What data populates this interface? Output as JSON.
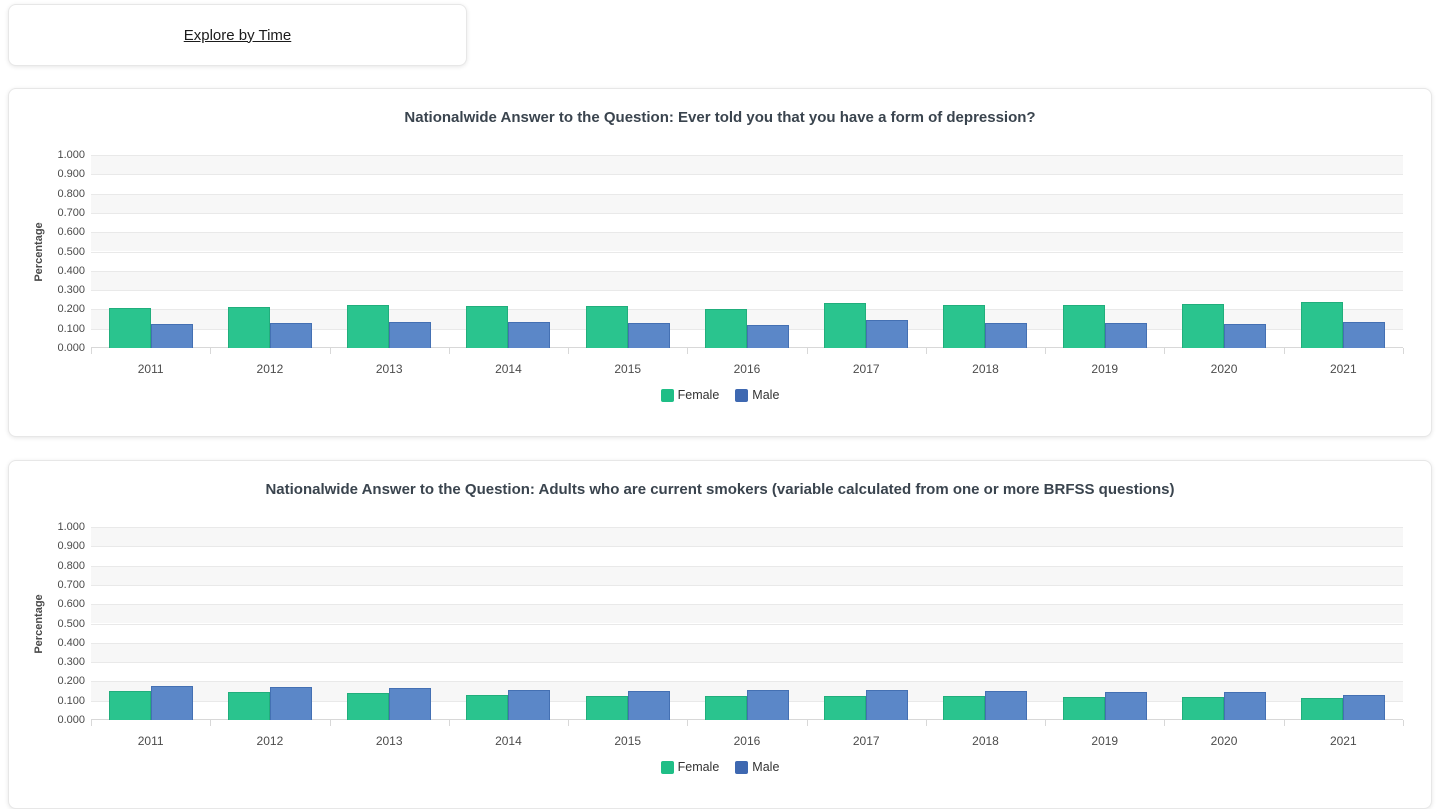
{
  "explore_card": {
    "link_label": "Explore by Time"
  },
  "colors": {
    "female_fill": "#2AC48E",
    "female_border": "#21AE7C",
    "female_legend": "#1FBE86",
    "male_fill": "#5B87C8",
    "male_border": "#4470B3",
    "male_legend": "#3E68B1",
    "band_gray": "#f7f7f7",
    "gridline": "#e9e9e9"
  },
  "chart_data": [
    {
      "type": "bar",
      "title": "Nationalwide Answer to the Question: Ever told you that you have a form of depression?",
      "xlabel": "",
      "ylabel": "Percentage",
      "ylim": [
        0,
        1
      ],
      "y_tick_labels": [
        "1.000",
        "0.900",
        "0.800",
        "0.700",
        "0.600",
        "0.500",
        "0.400",
        "0.300",
        "0.200",
        "0.100",
        "0.000"
      ],
      "grid": true,
      "legend_position": "bottom",
      "categories": [
        "2011",
        "2012",
        "2013",
        "2014",
        "2015",
        "2016",
        "2017",
        "2018",
        "2019",
        "2020",
        "2021"
      ],
      "series": [
        {
          "name": "Female",
          "color_key": "female",
          "values": [
            0.205,
            0.21,
            0.223,
            0.218,
            0.216,
            0.202,
            0.232,
            0.221,
            0.222,
            0.228,
            0.241
          ]
        },
        {
          "name": "Male",
          "color_key": "male",
          "values": [
            0.125,
            0.128,
            0.135,
            0.133,
            0.131,
            0.119,
            0.143,
            0.13,
            0.131,
            0.124,
            0.134
          ]
        }
      ]
    },
    {
      "type": "bar",
      "title": "Nationalwide Answer to the Question: Adults who are current smokers (variable calculated from one or more BRFSS questions)",
      "xlabel": "",
      "ylabel": "Percentage",
      "ylim": [
        0,
        1
      ],
      "y_tick_labels": [
        "1.000",
        "0.900",
        "0.800",
        "0.700",
        "0.600",
        "0.500",
        "0.400",
        "0.300",
        "0.200",
        "0.100",
        "0.000"
      ],
      "grid": true,
      "legend_position": "bottom",
      "categories": [
        "2011",
        "2012",
        "2013",
        "2014",
        "2015",
        "2016",
        "2017",
        "2018",
        "2019",
        "2020",
        "2021"
      ],
      "series": [
        {
          "name": "Female",
          "color_key": "female",
          "values": [
            0.148,
            0.144,
            0.142,
            0.128,
            0.123,
            0.127,
            0.127,
            0.125,
            0.12,
            0.118,
            0.115
          ]
        },
        {
          "name": "Male",
          "color_key": "male",
          "values": [
            0.175,
            0.17,
            0.167,
            0.158,
            0.151,
            0.153,
            0.155,
            0.151,
            0.146,
            0.144,
            0.13
          ]
        }
      ]
    }
  ]
}
